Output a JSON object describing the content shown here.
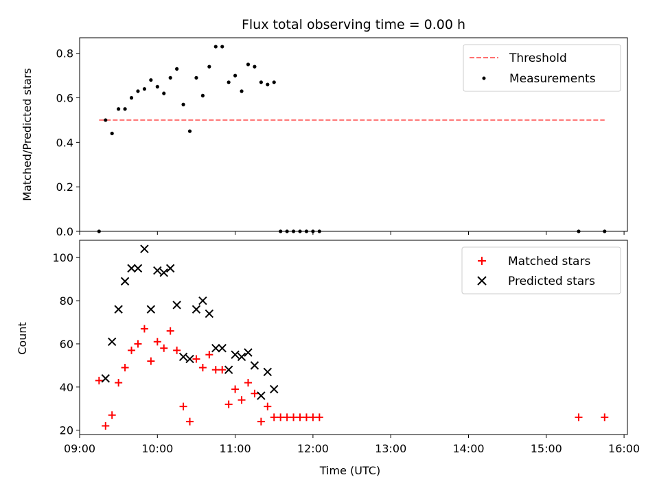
{
  "chart_data": [
    {
      "type": "scatter",
      "title": "Flux total observing time = 0.00 h",
      "xlabel": "",
      "ylabel": "Matched/Predicted stars",
      "xlim": [
        "09:00",
        "16:00"
      ],
      "ylim": [
        0,
        0.87
      ],
      "yticks": [
        0.0,
        0.2,
        0.4,
        0.6,
        0.8
      ],
      "ytick_labels": [
        "0.0",
        "0.2",
        "0.4",
        "0.6",
        "0.8"
      ],
      "legend_position": "top-right",
      "grid": false,
      "threshold": {
        "name": "Threshold",
        "value": 0.5,
        "x_range": [
          "09:15",
          "15:45"
        ],
        "color": "#ff6f6f",
        "style": "dashed"
      },
      "series": [
        {
          "name": "Measurements",
          "color": "#000000",
          "marker": "dot",
          "x": [
            "09:15",
            "09:20",
            "09:25",
            "09:30",
            "09:35",
            "09:40",
            "09:45",
            "09:50",
            "09:55",
            "10:00",
            "10:05",
            "10:10",
            "10:15",
            "10:20",
            "10:25",
            "10:30",
            "10:35",
            "10:40",
            "10:45",
            "10:50",
            "10:55",
            "11:00",
            "11:05",
            "11:10",
            "11:15",
            "11:20",
            "11:25",
            "11:30",
            "11:35",
            "11:40",
            "11:45",
            "11:50",
            "11:55",
            "12:00",
            "12:05",
            "15:25",
            "15:45"
          ],
          "y": [
            0.0,
            0.5,
            0.44,
            0.55,
            0.55,
            0.6,
            0.63,
            0.64,
            0.68,
            0.65,
            0.62,
            0.69,
            0.73,
            0.57,
            0.45,
            0.69,
            0.61,
            0.74,
            0.83,
            0.83,
            0.67,
            0.7,
            0.63,
            0.75,
            0.74,
            0.67,
            0.66,
            0.67,
            0.0,
            0.0,
            0.0,
            0.0,
            0.0,
            0.0,
            0.0,
            0.0,
            0.0
          ]
        }
      ]
    },
    {
      "type": "scatter",
      "title": "",
      "xlabel": "Time (UTC)",
      "ylabel": "Count",
      "xlim": [
        "09:00",
        "16:00"
      ],
      "ylim": [
        18,
        108
      ],
      "xtick_labels": [
        "09:00",
        "10:00",
        "11:00",
        "12:00",
        "13:00",
        "14:00",
        "15:00",
        "16:00"
      ],
      "yticks": [
        20,
        40,
        60,
        80,
        100
      ],
      "ytick_labels": [
        "20",
        "40",
        "60",
        "80",
        "100"
      ],
      "legend_position": "top-right",
      "grid": false,
      "series": [
        {
          "name": "Matched stars",
          "color": "#ff0000",
          "marker": "plus",
          "x": [
            "09:15",
            "09:20",
            "09:25",
            "09:30",
            "09:35",
            "09:40",
            "09:45",
            "09:50",
            "09:55",
            "10:00",
            "10:05",
            "10:10",
            "10:15",
            "10:20",
            "10:25",
            "10:30",
            "10:35",
            "10:40",
            "10:45",
            "10:50",
            "10:55",
            "11:00",
            "11:05",
            "11:10",
            "11:15",
            "11:20",
            "11:25",
            "11:30",
            "11:35",
            "11:40",
            "11:45",
            "11:50",
            "11:55",
            "12:00",
            "12:05",
            "15:25",
            "15:45"
          ],
          "y": [
            43,
            22,
            27,
            42,
            49,
            57,
            60,
            67,
            52,
            61,
            58,
            66,
            57,
            31,
            24,
            53,
            49,
            55,
            48,
            48,
            32,
            39,
            34,
            42,
            37,
            24,
            31,
            26,
            26,
            26,
            26,
            26,
            26,
            26,
            26,
            26,
            26
          ]
        },
        {
          "name": "Predicted stars",
          "color": "#000000",
          "marker": "x",
          "x": [
            "09:20",
            "09:25",
            "09:30",
            "09:35",
            "09:40",
            "09:45",
            "09:50",
            "09:55",
            "10:00",
            "10:05",
            "10:10",
            "10:15",
            "10:20",
            "10:25",
            "10:30",
            "10:35",
            "10:40",
            "10:45",
            "10:50",
            "10:55",
            "11:00",
            "11:05",
            "11:10",
            "11:15",
            "11:20",
            "11:25",
            "11:30"
          ],
          "y": [
            44,
            61,
            76,
            89,
            95,
            95,
            104,
            76,
            94,
            93,
            95,
            78,
            54,
            53,
            76,
            80,
            74,
            58,
            58,
            48,
            55,
            54,
            56,
            50,
            36,
            47,
            39
          ]
        }
      ]
    }
  ]
}
